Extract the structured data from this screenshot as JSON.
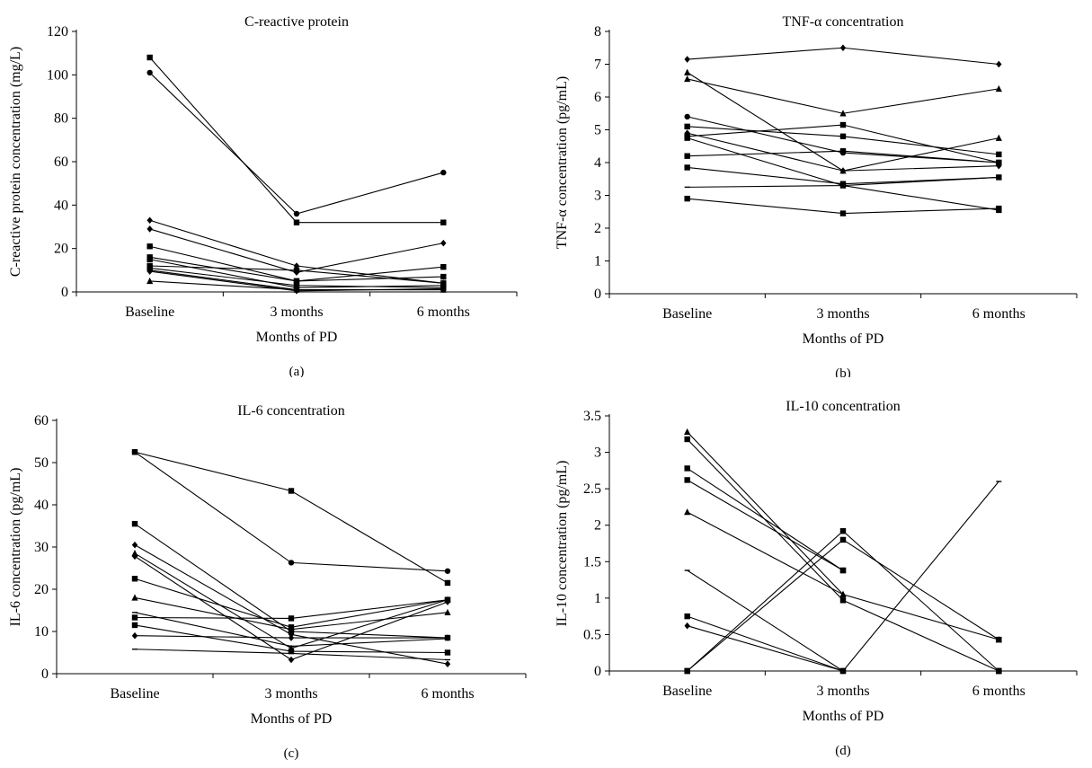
{
  "chart_data": [
    {
      "panel": "a",
      "type": "line",
      "title": "C-reactive protein",
      "xlabel": "Months of PD",
      "ylabel": "C-reactive protein concentration (mg/L)",
      "caption": "(a)",
      "categories": [
        "Baseline",
        "3 months",
        "6 months"
      ],
      "ylim": [
        0,
        120
      ],
      "yticks": [
        0,
        20,
        40,
        60,
        80,
        100,
        120
      ],
      "grid": false,
      "series": [
        {
          "values": [
            108,
            32,
            32
          ],
          "marker": "square"
        },
        {
          "values": [
            101,
            36,
            55
          ],
          "marker": "circle"
        },
        {
          "values": [
            33,
            12,
            4
          ],
          "marker": "diamond"
        },
        {
          "values": [
            29,
            9,
            22.5
          ],
          "marker": "diamond"
        },
        {
          "values": [
            21,
            5,
            11.5
          ],
          "marker": "square"
        },
        {
          "values": [
            16,
            5,
            7
          ],
          "marker": "square"
        },
        {
          "values": [
            15,
            2,
            3
          ],
          "marker": "square"
        },
        {
          "values": [
            12,
            10,
            4
          ],
          "marker": "square"
        },
        {
          "values": [
            11,
            3,
            2
          ],
          "marker": "square"
        },
        {
          "values": [
            10,
            1,
            1
          ],
          "marker": "circle"
        },
        {
          "values": [
            9.5,
            0.5,
            1.5
          ],
          "marker": "diamond"
        },
        {
          "values": [
            5,
            1,
            1
          ],
          "marker": "triangle"
        }
      ]
    },
    {
      "panel": "b",
      "type": "line",
      "title": "TNF-α concentration",
      "xlabel": "Months of PD",
      "ylabel": "TNF-α concentration (pg/mL)",
      "caption": "(b)",
      "categories": [
        "Baseline",
        "3 months",
        "6 months"
      ],
      "ylim": [
        0,
        8
      ],
      "yticks": [
        0,
        1,
        2,
        3,
        4,
        5,
        6,
        7,
        8
      ],
      "grid": false,
      "series": [
        {
          "values": [
            7.15,
            7.5,
            7.0
          ],
          "marker": "diamond"
        },
        {
          "values": [
            6.75,
            3.75,
            4.75
          ],
          "marker": "triangle"
        },
        {
          "values": [
            6.55,
            5.5,
            6.25
          ],
          "marker": "triangle"
        },
        {
          "values": [
            5.4,
            4.3,
            4.0
          ],
          "marker": "circle"
        },
        {
          "values": [
            5.1,
            4.8,
            4.25
          ],
          "marker": "square"
        },
        {
          "values": [
            4.9,
            3.75,
            3.9
          ],
          "marker": "diamond"
        },
        {
          "values": [
            4.8,
            5.15,
            4.0
          ],
          "marker": "square"
        },
        {
          "values": [
            4.75,
            3.3,
            2.55
          ],
          "marker": "square"
        },
        {
          "values": [
            4.2,
            4.35,
            4.0
          ],
          "marker": "square"
        },
        {
          "values": [
            3.85,
            3.35,
            3.55
          ],
          "marker": "square"
        },
        {
          "values": [
            3.25,
            3.3,
            3.55
          ],
          "marker": "dash"
        },
        {
          "values": [
            2.9,
            2.45,
            2.6
          ],
          "marker": "square"
        }
      ]
    },
    {
      "panel": "c",
      "type": "line",
      "title": "IL-6 concentration",
      "xlabel": "Months of PD",
      "ylabel": "IL-6 concentration (pg/mL)",
      "caption": "(c)",
      "categories": [
        "Baseline",
        "3 months",
        "6 months"
      ],
      "ylim": [
        0,
        60
      ],
      "yticks": [
        0,
        10,
        20,
        30,
        40,
        50,
        60
      ],
      "grid": false,
      "series": [
        {
          "values": [
            52.5,
            43.3,
            21.5
          ],
          "marker": "square"
        },
        {
          "values": [
            52.5,
            26.3,
            24.3
          ],
          "marker": "circle"
        },
        {
          "values": [
            35.5,
            10.0,
            8.5
          ],
          "marker": "square"
        },
        {
          "values": [
            30.5,
            9.3,
            2.3
          ],
          "marker": "diamond"
        },
        {
          "values": [
            28.5,
            6.0,
            17.5
          ],
          "marker": "triangle"
        },
        {
          "values": [
            27.8,
            3.3,
            17.0
          ],
          "marker": "diamond"
        },
        {
          "values": [
            22.5,
            11.0,
            17.5
          ],
          "marker": "square"
        },
        {
          "values": [
            18.0,
            10.5,
            14.5
          ],
          "marker": "triangle"
        },
        {
          "values": [
            14.5,
            6.5,
            8.3
          ],
          "marker": "dash"
        },
        {
          "values": [
            13.3,
            13.1,
            17.5
          ],
          "marker": "square"
        },
        {
          "values": [
            11.5,
            5.3,
            5.0
          ],
          "marker": "square"
        },
        {
          "values": [
            9.0,
            8.5,
            8.5
          ],
          "marker": "diamond"
        },
        {
          "values": [
            5.8,
            4.8,
            3.3
          ],
          "marker": "dash"
        }
      ]
    },
    {
      "panel": "d",
      "type": "line",
      "title": "IL-10 concentration",
      "xlabel": "Months of PD",
      "ylabel": "IL-10 concentration (pg/mL)",
      "caption": "(d)",
      "categories": [
        "Baseline",
        "3 months",
        "6 months"
      ],
      "ylim": [
        0,
        3.5
      ],
      "yticks": [
        0,
        0.5,
        1,
        1.5,
        2,
        2.5,
        3,
        3.5
      ],
      "yticklabels": [
        "0",
        "0.5",
        "1",
        "1.5",
        "2",
        "2.5",
        "3",
        "3.5"
      ],
      "grid": false,
      "series": [
        {
          "values": [
            3.28,
            1.05,
            0.43
          ],
          "marker": "triangle"
        },
        {
          "values": [
            3.18,
            0.97,
            0.0
          ],
          "marker": "square"
        },
        {
          "values": [
            2.78,
            1.38,
            null
          ],
          "marker": "square"
        },
        {
          "values": [
            2.62,
            1.38,
            null
          ],
          "marker": "square"
        },
        {
          "values": [
            2.18,
            1.05,
            null
          ],
          "marker": "triangle"
        },
        {
          "values": [
            1.38,
            0.0,
            2.6
          ],
          "marker": "dash"
        },
        {
          "values": [
            0.75,
            0.0,
            0.0
          ],
          "marker": "square"
        },
        {
          "values": [
            0.62,
            0.0,
            0.0
          ],
          "marker": "diamond"
        },
        {
          "values": [
            0.0,
            1.92,
            0.0
          ],
          "marker": "square"
        },
        {
          "values": [
            0.0,
            1.8,
            0.43
          ],
          "marker": "square"
        },
        {
          "values": [
            0.0,
            0.0,
            0.0
          ],
          "marker": "square"
        }
      ]
    }
  ]
}
